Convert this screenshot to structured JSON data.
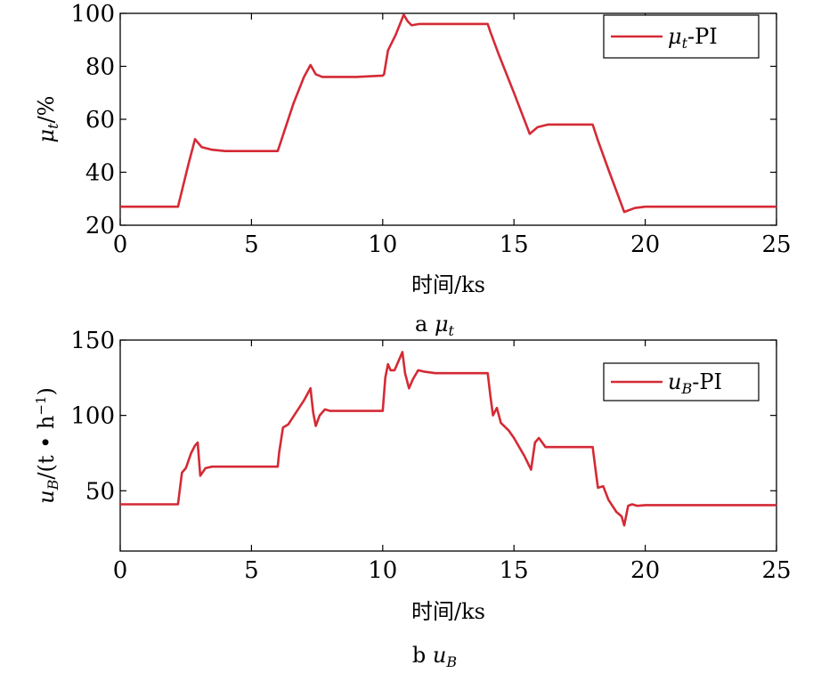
{
  "chart_data": [
    {
      "type": "line",
      "xlabel": "时间/ks",
      "ylabel_sym": "μ",
      "ylabel_sub": "t",
      "ylabel_rest": "/%",
      "caption_letter": "a",
      "caption_sym": "μ",
      "caption_sub": "t",
      "legend_sym": "μ",
      "legend_sub": "t",
      "legend_rest": "-PI",
      "xlim": [
        0,
        25
      ],
      "ylim": [
        20,
        100
      ],
      "xticks": [
        0,
        5,
        10,
        15,
        20,
        25
      ],
      "yticks": [
        20,
        40,
        60,
        80,
        100
      ],
      "color": "#d42a35",
      "legend_position": "top-right",
      "series": [
        {
          "x": [
            0,
            2.2,
            2.6,
            2.85,
            3.1,
            3.5,
            4,
            5,
            6,
            6.2,
            6.6,
            7.0,
            7.25,
            7.45,
            7.7,
            8,
            9,
            10,
            10.05,
            10.2,
            10.5,
            10.8,
            10.95,
            11.1,
            11.4,
            12,
            13,
            14,
            14.1,
            14.4,
            15,
            15.6,
            15.9,
            16.3,
            17,
            18,
            18.2,
            18.6,
            19.2,
            19.6,
            20,
            21,
            25
          ],
          "y": [
            27,
            27,
            43,
            52.5,
            49.5,
            48.5,
            48,
            48,
            48,
            54,
            66,
            76,
            80.5,
            77,
            76,
            76,
            76,
            76.5,
            77,
            86,
            92,
            99.5,
            97,
            95.5,
            96,
            96,
            96,
            96,
            93,
            85,
            70,
            54.5,
            57,
            58,
            58,
            58,
            52,
            41,
            25,
            26.5,
            27,
            27,
            27
          ]
        }
      ]
    },
    {
      "type": "line",
      "xlabel": "时间/ks",
      "ylabel_sym": "u",
      "ylabel_sub": "B",
      "ylabel_rest": "/(t • h",
      "ylabel_sup": "−1",
      "ylabel_end": ")",
      "caption_letter": "b",
      "caption_sym": "u",
      "caption_sub": "B",
      "legend_sym": "u",
      "legend_sub": "B",
      "legend_rest": "-PI",
      "xlim": [
        0,
        25
      ],
      "ylim": [
        10,
        150
      ],
      "xticks": [
        0,
        5,
        10,
        15,
        20,
        25
      ],
      "yticks": [
        50,
        100,
        150
      ],
      "color": "#d42a35",
      "legend_position": "top-right",
      "series": [
        {
          "x": [
            0,
            2.0,
            2.2,
            2.35,
            2.5,
            2.7,
            2.85,
            2.95,
            3.05,
            3.25,
            3.5,
            4,
            5,
            6,
            6.05,
            6.2,
            6.4,
            6.7,
            7.0,
            7.25,
            7.35,
            7.45,
            7.6,
            7.8,
            8,
            9,
            10,
            10.1,
            10.2,
            10.3,
            10.45,
            10.6,
            10.75,
            10.85,
            11.0,
            11.15,
            11.35,
            11.6,
            12,
            13,
            14,
            14.1,
            14.2,
            14.35,
            14.5,
            14.8,
            15.0,
            15.4,
            15.65,
            15.8,
            15.95,
            16.2,
            17,
            18,
            18.1,
            18.2,
            18.4,
            18.6,
            18.9,
            19.1,
            19.2,
            19.35,
            19.5,
            19.7,
            20,
            22,
            25
          ],
          "y": [
            41,
            41,
            41,
            62,
            65,
            75,
            80,
            82,
            60,
            65,
            66,
            66,
            66,
            66,
            75,
            92,
            94,
            102,
            110,
            118,
            102,
            93,
            100,
            104,
            103,
            103,
            103,
            125,
            134,
            130,
            130,
            136,
            142,
            128,
            118,
            124,
            130,
            129,
            128,
            128,
            128,
            113,
            100,
            105,
            95,
            90,
            85,
            73,
            64,
            82,
            85,
            79,
            79,
            79,
            65,
            52,
            53,
            44,
            36,
            33,
            27,
            40,
            41,
            40,
            40.5,
            40.5,
            40.5
          ]
        }
      ]
    }
  ]
}
